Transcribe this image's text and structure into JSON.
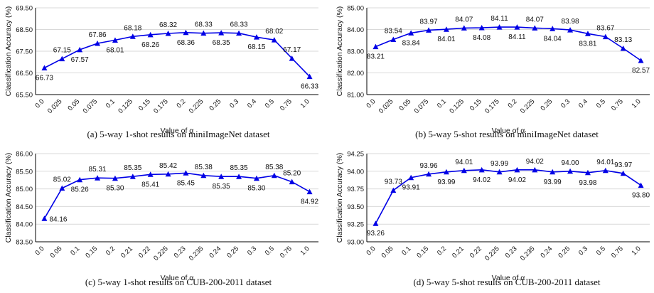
{
  "chart_data": [
    {
      "type": "line",
      "caption": "(a) 5-way 1-shot results on miniImageNet dataset",
      "xlabel": "Value of α",
      "ylabel": "Classification Accuracy (%)",
      "ylim": [
        65.5,
        69.5
      ],
      "yticks": [
        "65.50",
        "66.50",
        "67.50",
        "68.50",
        "69.50"
      ],
      "categories": [
        "0.0",
        "0.025",
        "0.05",
        "0.075",
        "0.1",
        "0.125",
        "0.15",
        "0.175",
        "0.2",
        "0.225",
        "0.25",
        "0.3",
        "0.4",
        "0.5",
        "0.75",
        "1.0"
      ],
      "values": [
        66.73,
        67.15,
        67.57,
        67.86,
        68.01,
        68.18,
        68.26,
        68.32,
        68.36,
        68.33,
        68.35,
        68.33,
        68.15,
        68.02,
        67.17,
        66.33
      ],
      "labels": [
        "66.73",
        "67.15",
        "67.57",
        "67.86",
        "68.01",
        "68.18",
        "68.26",
        "68.32",
        "68.36",
        "68.33",
        "68.35",
        "68.33",
        "68.15",
        "68.02",
        "67.17",
        "66.33"
      ],
      "label_pos": [
        "below",
        "above",
        "below",
        "above",
        "below",
        "above",
        "below",
        "above",
        "below",
        "above",
        "below",
        "above",
        "below",
        "above",
        "above",
        "below"
      ]
    },
    {
      "type": "line",
      "caption": "(b) 5-way 5-shot results on miniImageNet dataset",
      "xlabel": "Value of α",
      "ylabel": "Classification Accuracy (%)",
      "ylim": [
        81.0,
        85.0
      ],
      "yticks": [
        "81.00",
        "82.00",
        "83.00",
        "84.00",
        "85.00"
      ],
      "categories": [
        "0.0",
        "0.025",
        "0.05",
        "0.075",
        "0.1",
        "0.125",
        "0.15",
        "0.175",
        "0.2",
        "0.225",
        "0.25",
        "0.3",
        "0.4",
        "0.5",
        "0.75",
        "1.0"
      ],
      "values": [
        83.21,
        83.54,
        83.84,
        83.97,
        84.01,
        84.07,
        84.08,
        84.11,
        84.11,
        84.07,
        84.04,
        83.98,
        83.81,
        83.67,
        83.13,
        82.57
      ],
      "labels": [
        "83.21",
        "83.54",
        "83.84",
        "83.97",
        "84.01",
        "84.07",
        "84.08",
        "84.11",
        "84.11",
        "84.07",
        "84.04",
        "83.98",
        "83.81",
        "83.67",
        "83.13",
        "82.57"
      ],
      "label_pos": [
        "below",
        "above",
        "below",
        "above",
        "below",
        "above",
        "below",
        "above",
        "below",
        "above",
        "below",
        "above",
        "below",
        "above",
        "above",
        "below"
      ]
    },
    {
      "type": "line",
      "caption": "(c) 5-way 1-shot results on CUB-200-2011 dataset",
      "xlabel": "Value of α",
      "ylabel": "Classification Accuracy (%)",
      "ylim": [
        83.5,
        86.0
      ],
      "yticks": [
        "83.50",
        "84.00",
        "84.50",
        "85.00",
        "85.50",
        "86.00"
      ],
      "categories": [
        "0.0",
        "0.05",
        "0.1",
        "0.15",
        "0.2",
        "0.21",
        "0.22",
        "0.225",
        "0.23",
        "0.235",
        "0.24",
        "0.25",
        "0.3",
        "0.5",
        "0.75",
        "1.0"
      ],
      "values": [
        84.16,
        85.02,
        85.26,
        85.31,
        85.3,
        85.35,
        85.41,
        85.42,
        85.45,
        85.38,
        85.35,
        85.35,
        85.3,
        85.38,
        85.2,
        84.92
      ],
      "labels": [
        "84.16",
        "85.02",
        "85.26",
        "85.31",
        "85.30",
        "85.35",
        "85.41",
        "85.42",
        "85.45",
        "85.38",
        "85.35",
        "85.35",
        "85.30",
        "85.38",
        "85.20",
        "84.92"
      ],
      "label_pos": [
        "right",
        "above",
        "below",
        "above",
        "below",
        "above",
        "below",
        "above",
        "below",
        "above",
        "below",
        "above",
        "below",
        "above",
        "above",
        "below"
      ]
    },
    {
      "type": "line",
      "caption": "(d) 5-way 5-shot results on CUB-200-2011 dataset",
      "xlabel": "Value of α",
      "ylabel": "Classification Accuracy (%)",
      "ylim": [
        93.0,
        94.25
      ],
      "yticks": [
        "93.00",
        "93.25",
        "93.50",
        "93.75",
        "94.00",
        "94.25"
      ],
      "categories": [
        "0.0",
        "0.05",
        "0.1",
        "0.15",
        "0.2",
        "0.21",
        "0.22",
        "0.225",
        "0.23",
        "0.235",
        "0.24",
        "0.25",
        "0.3",
        "0.5",
        "0.75",
        "1.0"
      ],
      "values": [
        93.26,
        93.73,
        93.91,
        93.96,
        93.99,
        94.01,
        94.02,
        93.99,
        94.02,
        94.02,
        93.99,
        94.0,
        93.98,
        94.01,
        93.97,
        93.8
      ],
      "labels": [
        "93.26",
        "93.73",
        "93.91",
        "93.96",
        "93.99",
        "94.01",
        "94.02",
        "93.99",
        "94.02",
        "94.02",
        "93.99",
        "94.00",
        "93.98",
        "94.01",
        "93.97",
        "93.80"
      ],
      "label_pos": [
        "below",
        "above",
        "below",
        "above",
        "below",
        "above",
        "below",
        "above",
        "below",
        "above",
        "below",
        "above",
        "below",
        "above",
        "above",
        "below"
      ]
    }
  ],
  "colors": {
    "series": "#0000e6",
    "axis": "#000000",
    "grid": "#d9d9d9"
  }
}
